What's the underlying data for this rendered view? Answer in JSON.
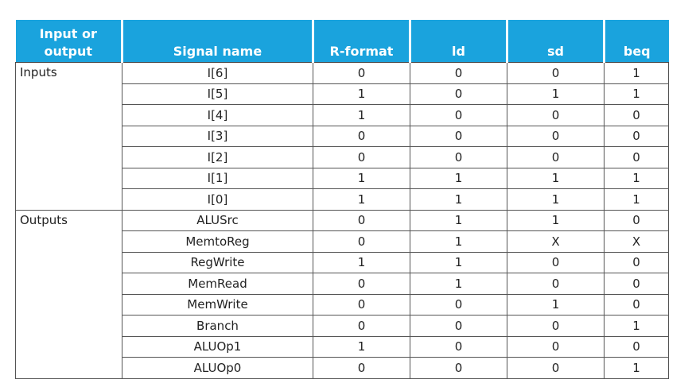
{
  "header": {
    "col0": "Input or output",
    "col1": "Signal name",
    "col2": "R-format",
    "col3": "ld",
    "col4": "sd",
    "col5": "beq"
  },
  "groups": [
    {
      "label": "Inputs",
      "rows": [
        {
          "signal": "I[6]",
          "values": [
            "0",
            "0",
            "0",
            "1"
          ]
        },
        {
          "signal": "I[5]",
          "values": [
            "1",
            "0",
            "1",
            "1"
          ]
        },
        {
          "signal": "I[4]",
          "values": [
            "1",
            "0",
            "0",
            "0"
          ]
        },
        {
          "signal": "I[3]",
          "values": [
            "0",
            "0",
            "0",
            "0"
          ]
        },
        {
          "signal": "I[2]",
          "values": [
            "0",
            "0",
            "0",
            "0"
          ]
        },
        {
          "signal": "I[1]",
          "values": [
            "1",
            "1",
            "1",
            "1"
          ]
        },
        {
          "signal": "I[0]",
          "values": [
            "1",
            "1",
            "1",
            "1"
          ]
        }
      ]
    },
    {
      "label": "Outputs",
      "rows": [
        {
          "signal": "ALUSrc",
          "values": [
            "0",
            "1",
            "1",
            "0"
          ]
        },
        {
          "signal": "MemtoReg",
          "values": [
            "0",
            "1",
            "X",
            "X"
          ]
        },
        {
          "signal": "RegWrite",
          "values": [
            "1",
            "1",
            "0",
            "0"
          ]
        },
        {
          "signal": "MemRead",
          "values": [
            "0",
            "1",
            "0",
            "0"
          ]
        },
        {
          "signal": "MemWrite",
          "values": [
            "0",
            "0",
            "1",
            "0"
          ]
        },
        {
          "signal": "Branch",
          "values": [
            "0",
            "0",
            "0",
            "1"
          ]
        },
        {
          "signal": "ALUOp1",
          "values": [
            "1",
            "0",
            "0",
            "0"
          ]
        },
        {
          "signal": "ALUOp0",
          "values": [
            "0",
            "0",
            "0",
            "1"
          ]
        }
      ]
    }
  ],
  "colors": {
    "header_bg": "#1aa3dd",
    "header_text": "#ffffff",
    "grid_line": "#555555"
  }
}
